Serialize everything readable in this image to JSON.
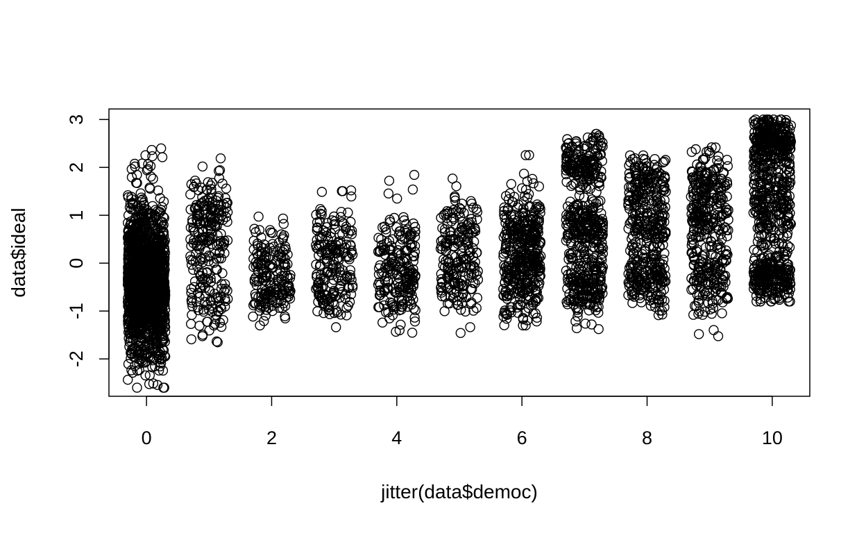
{
  "chart_data": {
    "type": "scatter",
    "title": "",
    "xlabel": "jitter(data$democ)",
    "ylabel": "data$ideal",
    "xlim": [
      -0.6,
      10.6
    ],
    "ylim": [
      -2.78,
      3.22
    ],
    "x_ticks": [
      0,
      2,
      4,
      6,
      8,
      10
    ],
    "x_tick_labels": [
      "0",
      "2",
      "4",
      "6",
      "8",
      "10"
    ],
    "y_ticks": [
      -2,
      -1,
      0,
      1,
      2,
      3
    ],
    "y_tick_labels": [
      "-2",
      "-1",
      "0",
      "1",
      "2",
      "3"
    ],
    "marker": "open-circle",
    "grid": false,
    "legend": "none",
    "jitter_halfwidth": 0.3,
    "series": [
      {
        "x_groups": [
          0,
          1,
          2,
          3,
          4,
          5,
          6,
          7,
          8,
          9,
          10
        ],
        "groups": [
          {
            "x": 0,
            "n": 1400,
            "y_range": [
              -2.6,
              2.4
            ],
            "clusters": [
              {
                "y": -0.4,
                "sd": 0.75
              }
            ]
          },
          {
            "x": 1,
            "n": 260,
            "y_range": [
              -1.7,
              2.2
            ],
            "clusters": [
              {
                "y": -0.7,
                "sd": 0.3
              },
              {
                "y": 0.3,
                "sd": 0.3
              },
              {
                "y": 1.1,
                "sd": 0.3
              }
            ]
          },
          {
            "x": 2,
            "n": 190,
            "y_range": [
              -1.3,
              1.0
            ],
            "clusters": [
              {
                "y": -0.6,
                "sd": 0.3
              },
              {
                "y": 0.1,
                "sd": 0.35
              }
            ]
          },
          {
            "x": 3,
            "n": 200,
            "y_range": [
              -1.4,
              1.6
            ],
            "clusters": [
              {
                "y": -0.5,
                "sd": 0.35
              },
              {
                "y": 0.6,
                "sd": 0.4
              }
            ]
          },
          {
            "x": 4,
            "n": 210,
            "y_range": [
              -1.7,
              1.95
            ],
            "clusters": [
              {
                "y": -0.5,
                "sd": 0.35
              },
              {
                "y": 0.4,
                "sd": 0.4
              }
            ]
          },
          {
            "x": 5,
            "n": 210,
            "y_range": [
              -1.65,
              1.9
            ],
            "clusters": [
              {
                "y": -0.5,
                "sd": 0.3
              },
              {
                "y": 0.1,
                "sd": 0.3
              },
              {
                "y": 0.9,
                "sd": 0.3
              }
            ]
          },
          {
            "x": 6,
            "n": 400,
            "y_range": [
              -1.3,
              2.35
            ],
            "clusters": [
              {
                "y": -0.5,
                "sd": 0.35
              },
              {
                "y": 0.1,
                "sd": 0.3
              },
              {
                "y": 0.9,
                "sd": 0.35
              }
            ]
          },
          {
            "x": 7,
            "n": 520,
            "y_range": [
              -1.55,
              2.7
            ],
            "clusters": [
              {
                "y": -0.4,
                "sd": 0.3
              },
              {
                "y": 0.8,
                "sd": 0.3
              },
              {
                "y": 2.1,
                "sd": 0.3
              }
            ]
          },
          {
            "x": 8,
            "n": 420,
            "y_range": [
              -1.25,
              2.25
            ],
            "clusters": [
              {
                "y": -0.4,
                "sd": 0.3
              },
              {
                "y": 0.7,
                "sd": 0.35
              },
              {
                "y": 1.7,
                "sd": 0.3
              }
            ]
          },
          {
            "x": 9,
            "n": 380,
            "y_range": [
              -1.55,
              2.45
            ],
            "clusters": [
              {
                "y": -0.3,
                "sd": 0.35
              },
              {
                "y": 0.8,
                "sd": 0.3
              },
              {
                "y": 1.6,
                "sd": 0.3
              }
            ]
          },
          {
            "x": 10,
            "n": 720,
            "y_range": [
              -0.8,
              3.0
            ],
            "clusters": [
              {
                "y": -0.3,
                "sd": 0.25
              },
              {
                "y": 1.3,
                "sd": 0.55
              },
              {
                "y": 2.6,
                "sd": 0.25
              }
            ]
          }
        ]
      }
    ]
  }
}
